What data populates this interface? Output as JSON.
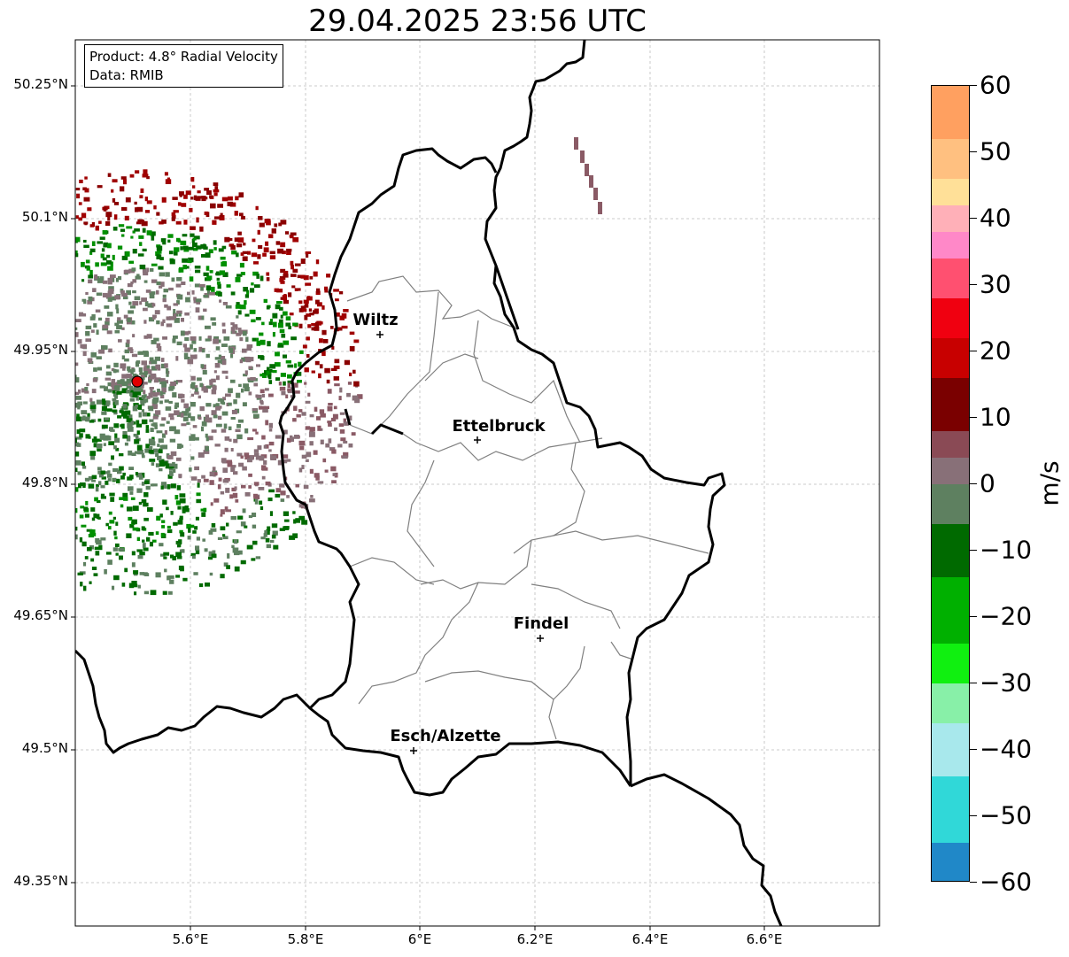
{
  "title": "29.04.2025 23:56 UTC",
  "info_box": {
    "product": "Product: 4.8° Radial Velocity",
    "data": "Data: RMIB"
  },
  "map": {
    "lat_ticks": [
      "50.25°N",
      "50.1°N",
      "49.95°N",
      "49.8°N",
      "49.65°N",
      "49.5°N",
      "49.35°N"
    ],
    "lon_ticks": [
      "5.6°E",
      "5.8°E",
      "6°E",
      "6.2°E",
      "6.4°E",
      "6.6°E"
    ],
    "cities": [
      {
        "name": "Wiltz"
      },
      {
        "name": "Ettelbruck"
      },
      {
        "name": "Findel"
      },
      {
        "name": "Esch/Alzette"
      }
    ],
    "radar_site_color": "#e00000"
  },
  "colorbar": {
    "unit": "m/s",
    "range": [
      -60,
      60
    ],
    "tick_labels": [
      "60",
      "50",
      "40",
      "30",
      "20",
      "10",
      "0",
      "−10",
      "−20",
      "−30",
      "−40",
      "−50",
      "−60"
    ],
    "bands": [
      {
        "from": 52,
        "to": 60,
        "color": "#ffa060"
      },
      {
        "from": 46,
        "to": 52,
        "color": "#ffc080"
      },
      {
        "from": 42,
        "to": 46,
        "color": "#ffe098"
      },
      {
        "from": 38,
        "to": 42,
        "color": "#ffb0b8"
      },
      {
        "from": 34,
        "to": 38,
        "color": "#ff88c8"
      },
      {
        "from": 28,
        "to": 34,
        "color": "#ff5070"
      },
      {
        "from": 22,
        "to": 28,
        "color": "#f00010"
      },
      {
        "from": 16,
        "to": 22,
        "color": "#c80000"
      },
      {
        "from": 8,
        "to": 16,
        "color": "#7a0000"
      },
      {
        "from": 4,
        "to": 8,
        "color": "#8a4a55"
      },
      {
        "from": 0,
        "to": 4,
        "color": "#887078"
      },
      {
        "from": -6,
        "to": 0,
        "color": "#5e8060"
      },
      {
        "from": -14,
        "to": -6,
        "color": "#006a00"
      },
      {
        "from": -24,
        "to": -14,
        "color": "#00b000"
      },
      {
        "from": -30,
        "to": -24,
        "color": "#10f010"
      },
      {
        "from": -36,
        "to": -30,
        "color": "#88f0a8"
      },
      {
        "from": -44,
        "to": -36,
        "color": "#a8e8ec"
      },
      {
        "from": -54,
        "to": -44,
        "color": "#30d8d8"
      },
      {
        "from": -60,
        "to": -54,
        "color": "#2088c8"
      }
    ]
  }
}
